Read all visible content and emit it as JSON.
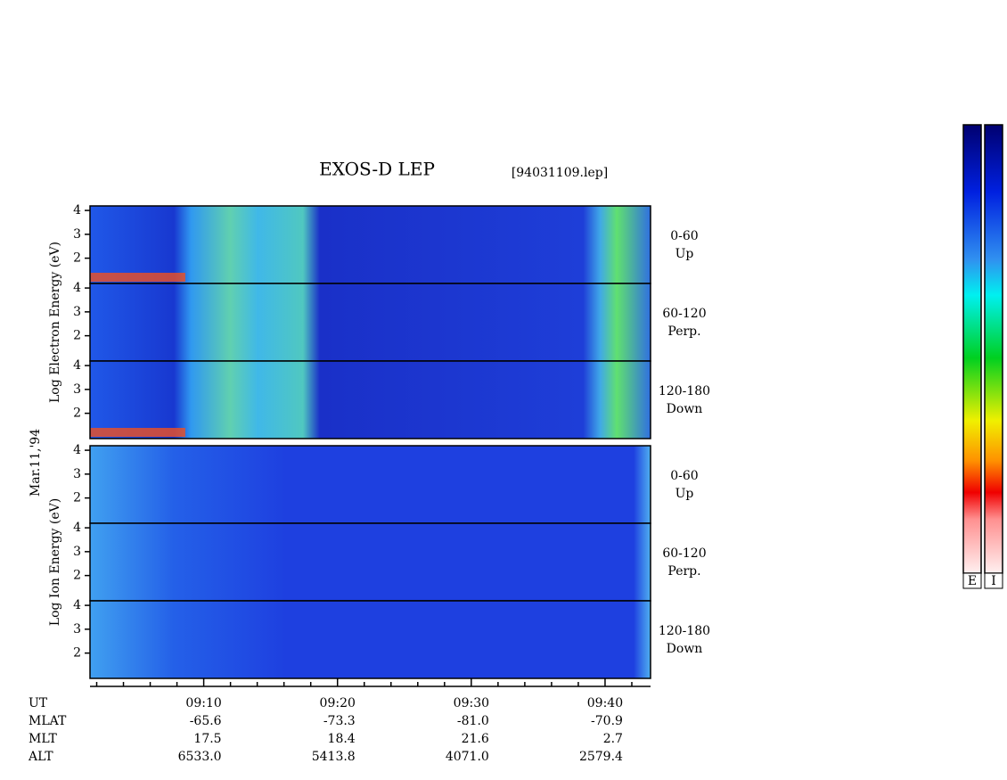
{
  "chart_data": {
    "type": "spectrogram",
    "title": "EXOS-D LEP",
    "subtitle": "[94031109.lep]",
    "date": "Mar.11,'94",
    "groups": [
      {
        "ylabel": "Log Electron Energy (eV)",
        "panels": [
          {
            "angle": "0-60",
            "direction": "Up",
            "ylim": [
              0.94,
              4.19
            ],
            "yticks": [
              2,
              3,
              4
            ]
          },
          {
            "angle": "60-120",
            "direction": "Perp.",
            "ylim": [
              0.94,
              4.19
            ],
            "yticks": [
              2,
              3,
              4
            ]
          },
          {
            "angle": "120-180",
            "direction": "Down",
            "ylim": [
              0.94,
              4.19
            ],
            "yticks": [
              2,
              3,
              4
            ]
          }
        ]
      },
      {
        "ylabel": "Log Ion Energy (eV)",
        "panels": [
          {
            "angle": "0-60",
            "direction": "Up",
            "ylim": [
              0.94,
              4.19
            ],
            "yticks": [
              2,
              3,
              4
            ]
          },
          {
            "angle": "60-120",
            "direction": "Perp.",
            "ylim": [
              0.94,
              4.19
            ],
            "yticks": [
              2,
              3,
              4
            ]
          },
          {
            "angle": "120-180",
            "direction": "Down",
            "ylim": [
              0.94,
              4.19
            ],
            "yticks": [
              2,
              3,
              4
            ]
          }
        ]
      }
    ],
    "xlabel": "UT",
    "xlim": [
      541.5,
      583.4
    ],
    "xticks": [
      {
        "value": 550,
        "label": "09:10"
      },
      {
        "value": 560,
        "label": "09:20"
      },
      {
        "value": 570,
        "label": "09:30"
      },
      {
        "value": 580,
        "label": "09:40"
      }
    ],
    "xminorticks": [
      542,
      544,
      546,
      548,
      552,
      554,
      556,
      558,
      562,
      564,
      566,
      568,
      572,
      574,
      576,
      578,
      582
    ],
    "ephemeris": [
      {
        "name": "MLAT",
        "values": [
          "-65.6",
          "-73.3",
          "-81.0",
          "-70.9"
        ]
      },
      {
        "name": "MLT",
        "values": [
          "17.5",
          "18.4",
          "21.6",
          "2.7"
        ]
      },
      {
        "name": "ALT",
        "values": [
          "6533.0",
          "5413.8",
          "4071.0",
          "2579.4"
        ]
      }
    ],
    "colorbars": [
      "E",
      "I"
    ]
  }
}
